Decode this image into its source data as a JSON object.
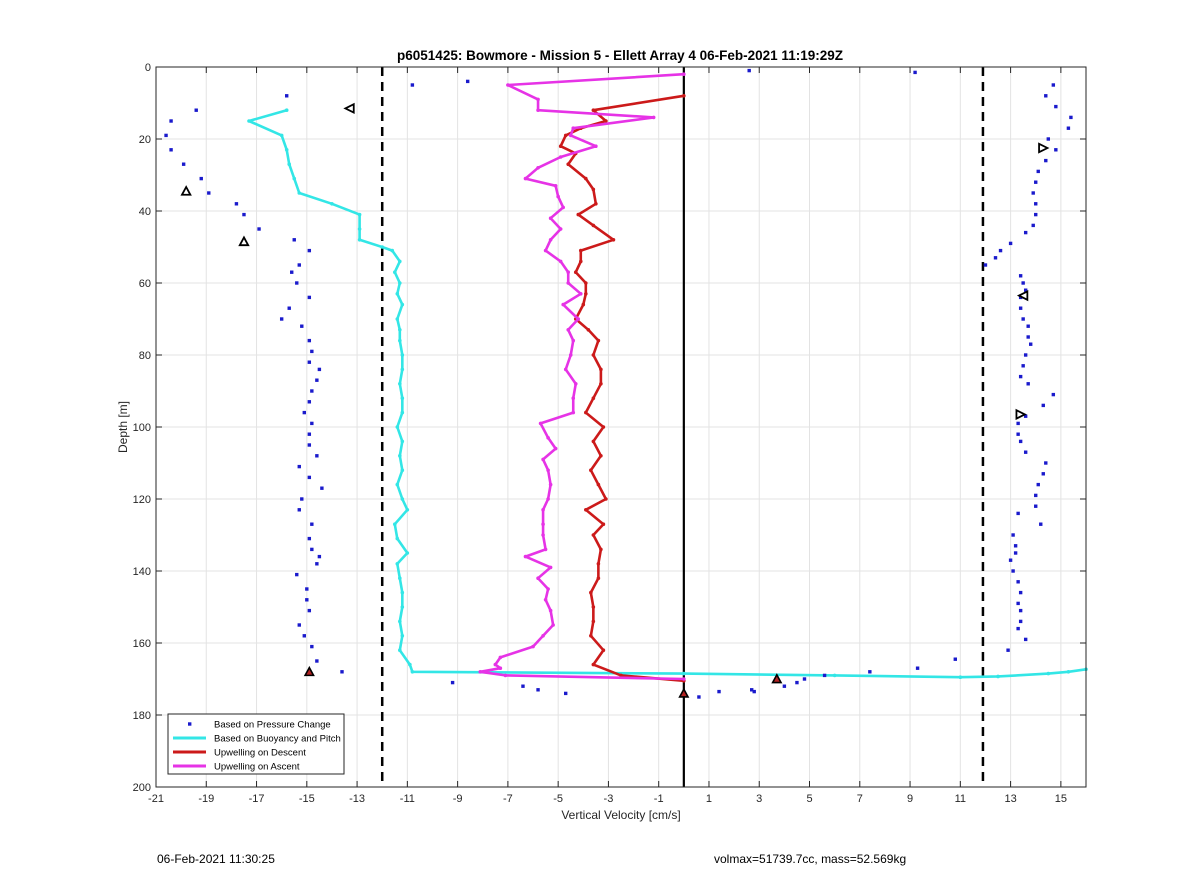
{
  "chart_data": {
    "type": "scatter",
    "title": "p6051425: Bowmore - Mission 5 - Ellett Array 4 06-Feb-2021 11:19:29Z",
    "xlabel": "Vertical Velocity [cm/s]",
    "ylabel": "Depth [m]",
    "xlim": [
      -21,
      16
    ],
    "ylim": [
      0,
      200
    ],
    "y_reversed": true,
    "grid": true,
    "legend_placement": "bottom-left",
    "xticks": [
      -21,
      -19,
      -17,
      -15,
      -13,
      -11,
      -9,
      -7,
      -5,
      -3,
      -1,
      1,
      3,
      5,
      7,
      9,
      11,
      13,
      15
    ],
    "yticks": [
      0,
      20,
      40,
      60,
      80,
      100,
      120,
      140,
      160,
      180,
      200
    ],
    "reference_lines": [
      {
        "x": -12,
        "style": "dashed",
        "color": "#000000"
      },
      {
        "x": 11.9,
        "style": "dashed",
        "color": "#000000"
      },
      {
        "x": 0,
        "style": "solid",
        "color": "#000000"
      }
    ],
    "series": [
      {
        "name": "Based on Pressure Change",
        "kind": "markers",
        "color": "#1a1acc",
        "points": [
          [
            -15.8,
            8
          ],
          [
            -19.4,
            12
          ],
          [
            -20.4,
            15
          ],
          [
            -20.6,
            19
          ],
          [
            -20.4,
            23
          ],
          [
            -19.9,
            27
          ],
          [
            -19.2,
            31
          ],
          [
            -18.9,
            35
          ],
          [
            -17.8,
            38
          ],
          [
            -17.5,
            41
          ],
          [
            -16.9,
            45
          ],
          [
            -15.5,
            48
          ],
          [
            -14.9,
            51
          ],
          [
            -15.3,
            55
          ],
          [
            -15.6,
            57
          ],
          [
            -15.4,
            60
          ],
          [
            -14.9,
            64
          ],
          [
            -15.7,
            67
          ],
          [
            -16.0,
            70
          ],
          [
            -15.2,
            72
          ],
          [
            -14.9,
            76
          ],
          [
            -14.8,
            79
          ],
          [
            -14.9,
            82
          ],
          [
            -14.5,
            84
          ],
          [
            -14.6,
            87
          ],
          [
            -14.8,
            90
          ],
          [
            -14.9,
            93
          ],
          [
            -15.1,
            96
          ],
          [
            -14.8,
            99
          ],
          [
            -14.9,
            102
          ],
          [
            -14.9,
            105
          ],
          [
            -14.6,
            108
          ],
          [
            -15.3,
            111
          ],
          [
            -14.9,
            114
          ],
          [
            -14.4,
            117
          ],
          [
            -15.2,
            120
          ],
          [
            -15.3,
            123
          ],
          [
            -14.8,
            127
          ],
          [
            -14.9,
            131
          ],
          [
            -14.8,
            134
          ],
          [
            -14.5,
            136
          ],
          [
            -14.6,
            138
          ],
          [
            -15.4,
            141
          ],
          [
            -15.0,
            145
          ],
          [
            -15.0,
            148
          ],
          [
            -14.9,
            151
          ],
          [
            -15.3,
            155
          ],
          [
            -15.1,
            158
          ],
          [
            -14.8,
            161
          ],
          [
            -14.6,
            165
          ],
          [
            -13.6,
            168
          ],
          [
            -10.8,
            5
          ],
          [
            -8.6,
            4
          ],
          [
            -9.2,
            171
          ],
          [
            -6.4,
            172
          ],
          [
            -5.8,
            173
          ],
          [
            -4.7,
            174
          ],
          [
            0.6,
            175
          ],
          [
            1.4,
            173.5
          ],
          [
            2.7,
            173
          ],
          [
            2.8,
            173.5
          ],
          [
            4.0,
            172
          ],
          [
            4.5,
            171
          ],
          [
            4.8,
            170
          ],
          [
            5.6,
            169
          ],
          [
            7.4,
            168
          ],
          [
            9.3,
            167
          ],
          [
            10.8,
            164.5
          ],
          [
            2.6,
            1
          ],
          [
            9.2,
            1.5
          ],
          [
            14.7,
            5
          ],
          [
            14.4,
            8
          ],
          [
            14.8,
            11
          ],
          [
            15.4,
            14
          ],
          [
            15.3,
            17
          ],
          [
            14.5,
            20
          ],
          [
            14.8,
            23
          ],
          [
            14.4,
            26
          ],
          [
            14.1,
            29
          ],
          [
            14.0,
            32
          ],
          [
            13.9,
            35
          ],
          [
            14.0,
            38
          ],
          [
            14.0,
            41
          ],
          [
            13.9,
            44
          ],
          [
            13.6,
            46
          ],
          [
            13.0,
            49
          ],
          [
            12.6,
            51
          ],
          [
            12.4,
            53
          ],
          [
            12.0,
            55
          ],
          [
            13.4,
            58
          ],
          [
            13.5,
            60
          ],
          [
            13.6,
            62
          ],
          [
            13.4,
            64
          ],
          [
            13.4,
            67
          ],
          [
            13.5,
            70
          ],
          [
            13.7,
            72
          ],
          [
            13.7,
            75
          ],
          [
            13.8,
            77
          ],
          [
            13.6,
            80
          ],
          [
            13.5,
            83
          ],
          [
            13.4,
            86
          ],
          [
            13.7,
            88
          ],
          [
            14.7,
            91
          ],
          [
            14.3,
            94
          ],
          [
            13.6,
            97
          ],
          [
            13.3,
            99
          ],
          [
            13.3,
            102
          ],
          [
            13.4,
            104
          ],
          [
            13.6,
            107
          ],
          [
            14.4,
            110
          ],
          [
            14.3,
            113
          ],
          [
            14.1,
            116
          ],
          [
            14.0,
            119
          ],
          [
            14.0,
            122
          ],
          [
            13.3,
            124
          ],
          [
            14.2,
            127
          ],
          [
            13.1,
            130
          ],
          [
            13.2,
            133
          ],
          [
            13.2,
            135
          ],
          [
            13.0,
            137
          ],
          [
            13.1,
            140
          ],
          [
            13.3,
            143
          ],
          [
            13.4,
            146
          ],
          [
            13.3,
            149
          ],
          [
            13.4,
            151
          ],
          [
            13.4,
            154
          ],
          [
            13.3,
            156
          ],
          [
            13.6,
            159
          ],
          [
            12.9,
            162
          ]
        ]
      },
      {
        "name": "Based on Buoyancy and Pitch",
        "kind": "line",
        "color": "#33e6e6",
        "points": [
          [
            -15.8,
            12
          ],
          [
            -17.3,
            15
          ],
          [
            -16.0,
            19
          ],
          [
            -15.8,
            23
          ],
          [
            -15.7,
            27
          ],
          [
            -15.5,
            31
          ],
          [
            -15.3,
            35
          ],
          [
            -14.0,
            38
          ],
          [
            -12.9,
            41
          ],
          [
            -12.9,
            45
          ],
          [
            -12.9,
            48
          ],
          [
            -12.0,
            50
          ],
          [
            -11.6,
            51
          ],
          [
            -11.3,
            54
          ],
          [
            -11.5,
            57
          ],
          [
            -11.3,
            60
          ],
          [
            -11.4,
            63
          ],
          [
            -11.2,
            66
          ],
          [
            -11.4,
            70
          ],
          [
            -11.3,
            73
          ],
          [
            -11.3,
            76
          ],
          [
            -11.2,
            80
          ],
          [
            -11.2,
            84
          ],
          [
            -11.3,
            88
          ],
          [
            -11.2,
            92
          ],
          [
            -11.2,
            96
          ],
          [
            -11.4,
            100
          ],
          [
            -11.2,
            104
          ],
          [
            -11.3,
            108
          ],
          [
            -11.2,
            112
          ],
          [
            -11.4,
            116
          ],
          [
            -11.2,
            120
          ],
          [
            -11.0,
            123
          ],
          [
            -11.5,
            127
          ],
          [
            -11.4,
            131
          ],
          [
            -11.0,
            135
          ],
          [
            -11.4,
            138
          ],
          [
            -11.3,
            142
          ],
          [
            -11.2,
            146
          ],
          [
            -11.2,
            150
          ],
          [
            -11.3,
            154
          ],
          [
            -11.2,
            158
          ],
          [
            -11.3,
            162
          ],
          [
            -10.9,
            166
          ],
          [
            -10.8,
            168
          ],
          [
            0.0,
            168.5
          ],
          [
            6.0,
            169
          ],
          [
            11.0,
            169.5
          ],
          [
            12.5,
            169.3
          ],
          [
            14.5,
            168.5
          ],
          [
            15.3,
            168
          ],
          [
            16.0,
            167.3
          ]
        ]
      },
      {
        "name": "Upwelling on Descent",
        "kind": "line",
        "color": "#cc1a1a",
        "points": [
          [
            0.0,
            8
          ],
          [
            -3.6,
            12
          ],
          [
            -3.1,
            15
          ],
          [
            -4.1,
            17
          ],
          [
            -4.7,
            19
          ],
          [
            -4.9,
            22
          ],
          [
            -4.3,
            24
          ],
          [
            -4.6,
            27
          ],
          [
            -3.9,
            31
          ],
          [
            -3.6,
            34
          ],
          [
            -3.5,
            38
          ],
          [
            -4.2,
            41
          ],
          [
            -3.6,
            44
          ],
          [
            -2.8,
            48
          ],
          [
            -4.1,
            51
          ],
          [
            -4.1,
            54
          ],
          [
            -4.3,
            57
          ],
          [
            -3.9,
            60
          ],
          [
            -3.9,
            63
          ],
          [
            -4.0,
            66
          ],
          [
            -4.3,
            70
          ],
          [
            -3.8,
            73
          ],
          [
            -3.4,
            76
          ],
          [
            -3.6,
            80
          ],
          [
            -3.3,
            84
          ],
          [
            -3.3,
            88
          ],
          [
            -3.6,
            92
          ],
          [
            -3.9,
            96
          ],
          [
            -3.2,
            100
          ],
          [
            -3.6,
            104
          ],
          [
            -3.3,
            108
          ],
          [
            -3.7,
            112
          ],
          [
            -3.4,
            116
          ],
          [
            -3.1,
            120
          ],
          [
            -3.9,
            123
          ],
          [
            -3.2,
            127
          ],
          [
            -3.6,
            130
          ],
          [
            -3.3,
            134
          ],
          [
            -3.4,
            138
          ],
          [
            -3.4,
            142
          ],
          [
            -3.7,
            146
          ],
          [
            -3.6,
            150
          ],
          [
            -3.6,
            154
          ],
          [
            -3.7,
            158
          ],
          [
            -3.2,
            162
          ],
          [
            -3.6,
            166
          ],
          [
            -2.5,
            169
          ],
          [
            0.0,
            170.5
          ]
        ]
      },
      {
        "name": "Upwelling on Ascent",
        "kind": "line",
        "color": "#e633e6",
        "points": [
          [
            0.0,
            2
          ],
          [
            -7.0,
            5
          ],
          [
            -5.8,
            9
          ],
          [
            -5.8,
            12
          ],
          [
            -1.2,
            14
          ],
          [
            -4.4,
            17
          ],
          [
            -4.5,
            19
          ],
          [
            -3.5,
            22
          ],
          [
            -4.9,
            25
          ],
          [
            -5.8,
            28
          ],
          [
            -6.3,
            31
          ],
          [
            -5.1,
            33
          ],
          [
            -5.0,
            36
          ],
          [
            -4.8,
            39
          ],
          [
            -5.3,
            42
          ],
          [
            -4.9,
            45
          ],
          [
            -5.3,
            48
          ],
          [
            -5.5,
            51
          ],
          [
            -4.9,
            54
          ],
          [
            -4.6,
            57
          ],
          [
            -4.6,
            60
          ],
          [
            -4.1,
            63
          ],
          [
            -4.8,
            66
          ],
          [
            -4.2,
            70
          ],
          [
            -4.6,
            73
          ],
          [
            -4.4,
            76
          ],
          [
            -4.5,
            80
          ],
          [
            -4.7,
            84
          ],
          [
            -4.3,
            88
          ],
          [
            -4.4,
            92
          ],
          [
            -4.4,
            96
          ],
          [
            -5.7,
            99
          ],
          [
            -5.4,
            103
          ],
          [
            -5.1,
            106
          ],
          [
            -5.6,
            109
          ],
          [
            -5.4,
            112
          ],
          [
            -5.3,
            116
          ],
          [
            -5.4,
            120
          ],
          [
            -5.6,
            123
          ],
          [
            -5.6,
            127
          ],
          [
            -5.6,
            130
          ],
          [
            -5.5,
            134
          ],
          [
            -6.3,
            136
          ],
          [
            -5.3,
            139
          ],
          [
            -5.8,
            142
          ],
          [
            -5.4,
            145
          ],
          [
            -5.5,
            148
          ],
          [
            -5.3,
            151
          ],
          [
            -5.2,
            155
          ],
          [
            -5.6,
            158
          ],
          [
            -6.0,
            161
          ],
          [
            -7.3,
            164
          ],
          [
            -7.5,
            166
          ],
          [
            -7.3,
            167
          ],
          [
            -8.1,
            168
          ],
          [
            -7.1,
            169
          ],
          [
            0.0,
            170
          ]
        ]
      },
      {
        "name": "",
        "kind": "triangle-markers",
        "color": "#000000",
        "points": [
          {
            "x": -13.3,
            "y": 11.5,
            "dir": "left"
          },
          {
            "x": -19.8,
            "y": 34.5,
            "dir": "up"
          },
          {
            "x": -17.5,
            "y": 48.5,
            "dir": "up"
          },
          {
            "x": 14.3,
            "y": 22.5,
            "dir": "right"
          },
          {
            "x": 13.5,
            "y": 63.5,
            "dir": "left"
          },
          {
            "x": 13.4,
            "y": 96.5,
            "dir": "right"
          }
        ]
      },
      {
        "name": "",
        "kind": "filled-triangle-markers",
        "color": "#b32222",
        "points": [
          {
            "x": -14.9,
            "y": 168
          },
          {
            "x": 3.7,
            "y": 170
          },
          {
            "x": 0.0,
            "y": 174
          }
        ]
      }
    ]
  },
  "footer": {
    "left": "06-Feb-2021 11:30:25",
    "right": "volmax=51739.7cc, mass=52.569kg"
  }
}
